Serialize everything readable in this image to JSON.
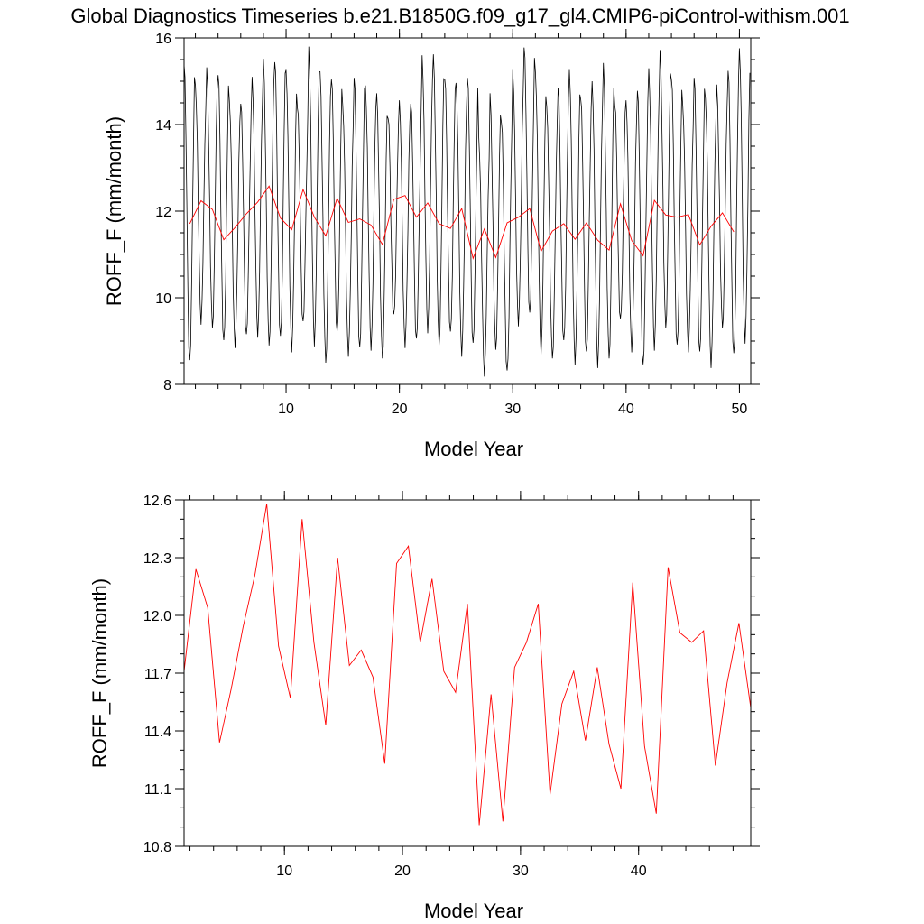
{
  "figure": {
    "title": "Global Diagnostics Timeseries b.e21.B1850G.f09_g17_gl4.CMIP6-piControl-withism.001"
  },
  "chart_data": [
    {
      "type": "line",
      "title": "Global Diagnostics Timeseries b.e21.B1850G.f09_g17_gl4.CMIP6-piControl-withism.001",
      "xlabel": "Model Year",
      "ylabel": "ROFF_F (mm/month)",
      "xlim": [
        1,
        51
      ],
      "ylim": [
        8,
        16
      ],
      "xticks": [
        10,
        20,
        30,
        40,
        50
      ],
      "yticks": [
        8,
        10,
        12,
        14,
        16
      ],
      "colors": {
        "monthly": "#000000",
        "annual": "#ff0000"
      },
      "series": [
        {
          "kind": "monthly",
          "x_start": 1,
          "step": 0.0833333,
          "peaks": [
            15.5,
            14.9,
            15.2,
            15.2,
            14.5,
            14.6,
            15.1,
            15.4,
            15.5,
            15.2,
            14.5,
            15.8,
            15.1,
            15.1,
            14.4,
            15.2,
            14.9,
            14.6,
            14.2,
            14.5,
            14.6,
            15.6,
            15.5,
            15.1,
            14.9,
            15.2,
            13.7,
            14.6,
            14.1,
            15.2,
            15.9,
            15.2,
            14.3,
            14.9,
            15.2,
            14.7,
            15.0,
            15.3,
            14.5,
            14.5,
            14.9,
            15.3,
            15.6,
            15.1,
            14.4,
            15.2,
            14.6,
            14.8,
            15.3,
            15.7
          ],
          "troughs": [
            8.5,
            9.5,
            9.3,
            8.9,
            8.9,
            9.1,
            9.2,
            8.9,
            9.0,
            8.8,
            9.4,
            9.0,
            8.5,
            9.1,
            8.7,
            8.8,
            8.9,
            8.6,
            9.5,
            8.9,
            9.0,
            9.3,
            8.9,
            9.1,
            8.7,
            8.9,
            8.3,
            8.8,
            8.2,
            9.4,
            9.6,
            8.8,
            8.6,
            8.9,
            8.5,
            8.7,
            8.5,
            8.6,
            9.4,
            8.8,
            8.4,
            8.9,
            9.3,
            8.8,
            8.8,
            8.7,
            8.5,
            9.3,
            8.6,
            9.0
          ]
        },
        {
          "kind": "annual",
          "x": [
            1.5,
            2.5,
            3.5,
            4.5,
            5.5,
            6.5,
            7.5,
            8.5,
            9.5,
            10.5,
            11.5,
            12.5,
            13.5,
            14.5,
            15.5,
            16.5,
            17.5,
            18.5,
            19.5,
            20.5,
            21.5,
            22.5,
            23.5,
            24.5,
            25.5,
            26.5,
            27.5,
            28.5,
            29.5,
            30.5,
            31.5,
            32.5,
            33.5,
            34.5,
            35.5,
            36.5,
            37.5,
            38.5,
            39.5,
            40.5,
            41.5,
            42.5,
            43.5,
            44.5,
            45.5,
            46.5,
            47.5,
            48.5,
            49.5
          ],
          "values": [
            11.71,
            12.24,
            12.04,
            11.34,
            11.62,
            11.94,
            12.21,
            12.58,
            11.84,
            11.57,
            12.5,
            11.86,
            11.43,
            12.3,
            11.74,
            11.82,
            11.68,
            11.23,
            12.27,
            12.36,
            11.86,
            12.19,
            11.71,
            11.6,
            12.06,
            10.91,
            11.59,
            10.93,
            11.73,
            11.86,
            12.06,
            11.07,
            11.54,
            11.71,
            11.35,
            11.73,
            11.33,
            11.1,
            12.17,
            11.32,
            10.97,
            12.25,
            11.91,
            11.86,
            11.92,
            11.22,
            11.65,
            11.96,
            11.52
          ]
        }
      ]
    },
    {
      "type": "line",
      "title": "",
      "xlabel": "Model Year",
      "ylabel": "ROFF_F (mm/month)",
      "xlim": [
        1.5,
        49.5
      ],
      "ylim": [
        10.8,
        12.6
      ],
      "xticks": [
        10,
        20,
        30,
        40
      ],
      "yticks": [
        "10.8",
        "11.1",
        "11.4",
        "11.7",
        "12.0",
        "12.3",
        "12.6"
      ],
      "colors": {
        "annual": "#ff0000"
      },
      "series": [
        {
          "kind": "annual",
          "x": [
            1.5,
            2.5,
            3.5,
            4.5,
            5.5,
            6.5,
            7.5,
            8.5,
            9.5,
            10.5,
            11.5,
            12.5,
            13.5,
            14.5,
            15.5,
            16.5,
            17.5,
            18.5,
            19.5,
            20.5,
            21.5,
            22.5,
            23.5,
            24.5,
            25.5,
            26.5,
            27.5,
            28.5,
            29.5,
            30.5,
            31.5,
            32.5,
            33.5,
            34.5,
            35.5,
            36.5,
            37.5,
            38.5,
            39.5,
            40.5,
            41.5,
            42.5,
            43.5,
            44.5,
            45.5,
            46.5,
            47.5,
            48.5,
            49.5
          ],
          "values": [
            11.71,
            12.24,
            12.04,
            11.34,
            11.62,
            11.94,
            12.21,
            12.58,
            11.84,
            11.57,
            12.5,
            11.86,
            11.43,
            12.3,
            11.74,
            11.82,
            11.68,
            11.23,
            12.27,
            12.36,
            11.86,
            12.19,
            11.71,
            11.6,
            12.06,
            10.91,
            11.59,
            10.93,
            11.73,
            11.86,
            12.06,
            11.07,
            11.54,
            11.71,
            11.35,
            11.73,
            11.33,
            11.1,
            12.17,
            11.32,
            10.97,
            12.25,
            11.91,
            11.86,
            11.92,
            11.22,
            11.65,
            11.96,
            11.52
          ]
        }
      ]
    }
  ]
}
